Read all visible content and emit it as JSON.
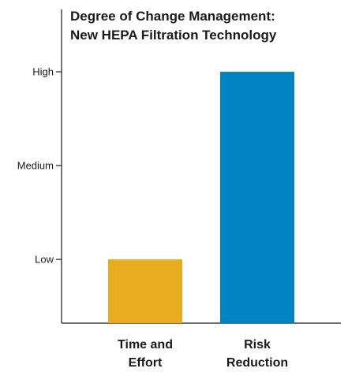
{
  "chart_data": {
    "type": "bar",
    "title_lines": [
      "Degree of Change Management:",
      "New HEPA Filtration Technology"
    ],
    "categories": [
      [
        "Time and",
        "Effort"
      ],
      [
        "Risk",
        "Reduction"
      ]
    ],
    "values": [
      1,
      3
    ],
    "bar_colors": [
      "#E9AB22",
      "#0082C3"
    ],
    "y_ticks": [
      {
        "value": 1,
        "label": "Low"
      },
      {
        "value": 2,
        "label": "Medium"
      },
      {
        "value": 3,
        "label": "High"
      }
    ],
    "ylim": [
      0.32,
      3.6
    ],
    "xlabel": "",
    "ylabel": "",
    "grid": false,
    "legend": "none"
  }
}
